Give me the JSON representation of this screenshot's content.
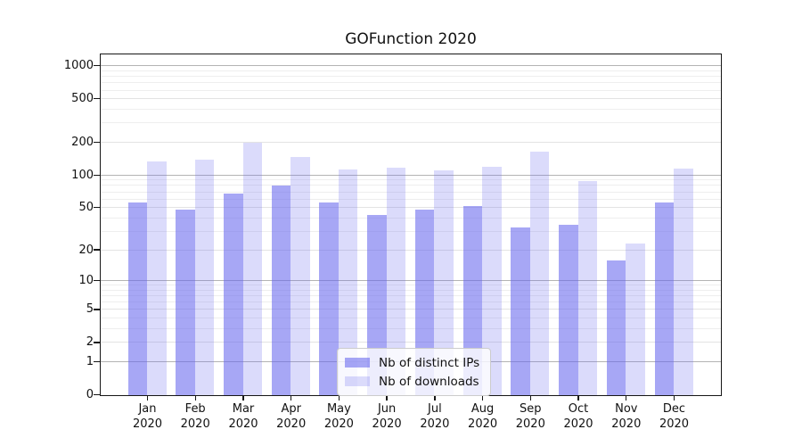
{
  "chart_data": {
    "type": "bar",
    "title": "GOFunction 2020",
    "categories": [
      {
        "label": "Jan",
        "sublabel": "2020"
      },
      {
        "label": "Feb",
        "sublabel": "2020"
      },
      {
        "label": "Mar",
        "sublabel": "2020"
      },
      {
        "label": "Apr",
        "sublabel": "2020"
      },
      {
        "label": "May",
        "sublabel": "2020"
      },
      {
        "label": "Jun",
        "sublabel": "2020"
      },
      {
        "label": "Jul",
        "sublabel": "2020"
      },
      {
        "label": "Aug",
        "sublabel": "2020"
      },
      {
        "label": "Sep",
        "sublabel": "2020"
      },
      {
        "label": "Oct",
        "sublabel": "2020"
      },
      {
        "label": "Nov",
        "sublabel": "2020"
      },
      {
        "label": "Dec",
        "sublabel": "2020"
      }
    ],
    "series": [
      {
        "name": "Nb of distinct IPs",
        "color": "rgba(103,103,238,0.58)",
        "values": [
          56,
          48,
          68,
          81,
          56,
          43,
          48,
          52,
          33,
          35,
          16,
          56
        ]
      },
      {
        "name": "Nb of downloads",
        "color": "rgba(103,103,238,0.24)",
        "values": [
          134,
          140,
          200,
          149,
          113,
          117,
          111,
          120,
          165,
          88,
          23,
          116
        ]
      }
    ],
    "y_scale": "log1p",
    "ylim": [
      0,
      1258
    ],
    "y_ticks": [
      {
        "value": 1000,
        "label": "1000"
      },
      {
        "value": 500,
        "label": "500"
      },
      {
        "value": 200,
        "label": "200"
      },
      {
        "value": 100,
        "label": "100"
      },
      {
        "value": 50,
        "label": "50"
      },
      {
        "value": 20,
        "label": "20"
      },
      {
        "value": 10,
        "label": "10"
      },
      {
        "value": 5,
        "label": "5"
      },
      {
        "value": 2,
        "label": "2"
      },
      {
        "value": 1,
        "label": "1"
      },
      {
        "value": 0,
        "label": "0"
      }
    ],
    "grid": true,
    "legend_position": "lower center",
    "xlabel": "",
    "ylabel": ""
  }
}
